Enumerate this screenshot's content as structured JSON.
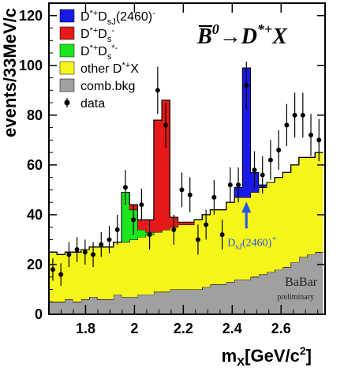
{
  "chart_data": {
    "type": "bar",
    "title": "B̅0→D*+X",
    "xlabel": "mX[GeV/c2]",
    "ylabel": "events/33MeV/c",
    "xlim": [
      1.65,
      2.78
    ],
    "ylim": [
      0,
      125
    ],
    "xticks": [
      "1.8",
      "2",
      "2.2",
      "2.4",
      "2.6"
    ],
    "xtick_values": [
      1.8,
      2.0,
      2.2,
      2.4,
      2.6
    ],
    "yticks": [
      "0",
      "20",
      "40",
      "60",
      "80",
      "100",
      "120"
    ],
    "ytick_values": [
      0,
      20,
      40,
      60,
      80,
      100,
      120
    ],
    "legend_position": "top-left",
    "legend": [
      {
        "label": "D*+DsJ(2460)-",
        "color": "#1a1ae6",
        "kind": "box"
      },
      {
        "label": "D*+Ds-",
        "color": "#e61a1a",
        "kind": "box"
      },
      {
        "label": "D*+Ds*-",
        "color": "#1ae61a",
        "kind": "box"
      },
      {
        "label": "other D*+X",
        "color": "#f5f51a",
        "kind": "box"
      },
      {
        "label": "comb.bkg",
        "color": "#a0a0a0",
        "kind": "box"
      },
      {
        "label": "data",
        "color": "#000000",
        "kind": "marker"
      }
    ],
    "bin_edges": [
      1.65,
      1.683,
      1.716,
      1.749,
      1.782,
      1.815,
      1.848,
      1.881,
      1.914,
      1.947,
      1.98,
      2.013,
      2.046,
      2.079,
      2.112,
      2.145,
      2.178,
      2.211,
      2.244,
      2.277,
      2.31,
      2.343,
      2.376,
      2.409,
      2.442,
      2.475,
      2.508,
      2.541,
      2.574,
      2.607,
      2.64,
      2.673,
      2.706,
      2.739,
      2.772
    ],
    "series": [
      {
        "name": "comb.bkg",
        "color": "#a0a0a0",
        "values": [
          5,
          5,
          6,
          5,
          6,
          7,
          6,
          6,
          8,
          7,
          7,
          8,
          8,
          9,
          9,
          10,
          10,
          10,
          10,
          11,
          12,
          12,
          13,
          14,
          14,
          15,
          16,
          17,
          18,
          19,
          21,
          23,
          24,
          25
        ]
      },
      {
        "name": "other D*+X",
        "color": "#f5f51a",
        "values": [
          20,
          19,
          19,
          20,
          20,
          20,
          21,
          21,
          21,
          22,
          23,
          23,
          24,
          24,
          25,
          25,
          26,
          26,
          28,
          29,
          30,
          30,
          32,
          33,
          33,
          34,
          35,
          36,
          37,
          38,
          39,
          40,
          39,
          40
        ]
      },
      {
        "name": "D*+Ds*-",
        "color": "#1ae61a",
        "values": [
          0,
          0,
          0,
          0,
          0,
          0,
          0,
          0,
          0,
          20,
          12,
          3,
          1,
          0,
          0,
          0,
          0,
          0,
          0,
          0,
          0,
          0,
          0,
          0,
          0,
          0,
          0,
          0,
          0,
          0,
          0,
          0,
          0,
          0
        ]
      },
      {
        "name": "D*+Ds-",
        "color": "#e61a1a",
        "values": [
          0,
          0,
          0,
          0,
          0,
          0,
          0,
          0,
          0,
          0,
          2,
          4,
          5,
          45,
          52,
          4,
          1,
          1,
          0,
          0,
          0,
          0,
          0,
          0,
          0,
          0,
          0,
          0,
          0,
          0,
          0,
          0,
          0,
          0
        ]
      },
      {
        "name": "D*+DsJ(2460)-",
        "color": "#1a1ae6",
        "values": [
          0,
          0,
          0,
          0,
          0,
          0,
          0,
          0,
          0,
          0,
          0,
          0,
          0,
          0,
          0,
          0,
          0,
          0,
          0,
          0,
          0,
          0,
          0,
          4,
          52,
          8,
          1,
          0,
          0,
          0,
          0,
          0,
          0,
          0
        ]
      }
    ],
    "data_points": [
      {
        "x": 1.666,
        "y": 18,
        "err": 4.5
      },
      {
        "x": 1.699,
        "y": 16,
        "err": 4.5
      },
      {
        "x": 1.732,
        "y": 24,
        "err": 5
      },
      {
        "x": 1.765,
        "y": 26,
        "err": 5
      },
      {
        "x": 1.798,
        "y": 25,
        "err": 5
      },
      {
        "x": 1.831,
        "y": 24,
        "err": 5
      },
      {
        "x": 1.864,
        "y": 28,
        "err": 5
      },
      {
        "x": 1.897,
        "y": 30,
        "err": 5.5
      },
      {
        "x": 1.93,
        "y": 34,
        "err": 6
      },
      {
        "x": 1.963,
        "y": 51,
        "err": 7
      },
      {
        "x": 1.996,
        "y": 38,
        "err": 6
      },
      {
        "x": 2.029,
        "y": 44,
        "err": 6.5
      },
      {
        "x": 2.062,
        "y": 32,
        "err": 6
      },
      {
        "x": 2.095,
        "y": 90,
        "err": 9.5
      },
      {
        "x": 2.128,
        "y": 76,
        "err": 9
      },
      {
        "x": 2.161,
        "y": 34,
        "err": 6
      },
      {
        "x": 2.194,
        "y": 50,
        "err": 7
      },
      {
        "x": 2.227,
        "y": 48,
        "err": 7
      },
      {
        "x": 2.26,
        "y": 30,
        "err": 6
      },
      {
        "x": 2.293,
        "y": 36,
        "err": 6
      },
      {
        "x": 2.326,
        "y": 47,
        "err": 7
      },
      {
        "x": 2.359,
        "y": 32,
        "err": 6
      },
      {
        "x": 2.392,
        "y": 52,
        "err": 7
      },
      {
        "x": 2.425,
        "y": 52,
        "err": 7
      },
      {
        "x": 2.458,
        "y": 92,
        "err": 9.5
      },
      {
        "x": 2.491,
        "y": 58,
        "err": 7.5
      },
      {
        "x": 2.524,
        "y": 56,
        "err": 7.5
      },
      {
        "x": 2.557,
        "y": 62,
        "err": 8
      },
      {
        "x": 2.59,
        "y": 66,
        "err": 8
      },
      {
        "x": 2.623,
        "y": 76,
        "err": 8.5
      },
      {
        "x": 2.656,
        "y": 80,
        "err": 9
      },
      {
        "x": 2.689,
        "y": 80,
        "err": 9
      },
      {
        "x": 2.722,
        "y": 72,
        "err": 8.5
      },
      {
        "x": 2.755,
        "y": 70,
        "err": 8.5
      }
    ],
    "annotation": {
      "label": "DsJ(2460)+",
      "x": 2.458,
      "y": 44
    },
    "brand": {
      "name": "BaBar",
      "sub": "preliminary"
    }
  }
}
